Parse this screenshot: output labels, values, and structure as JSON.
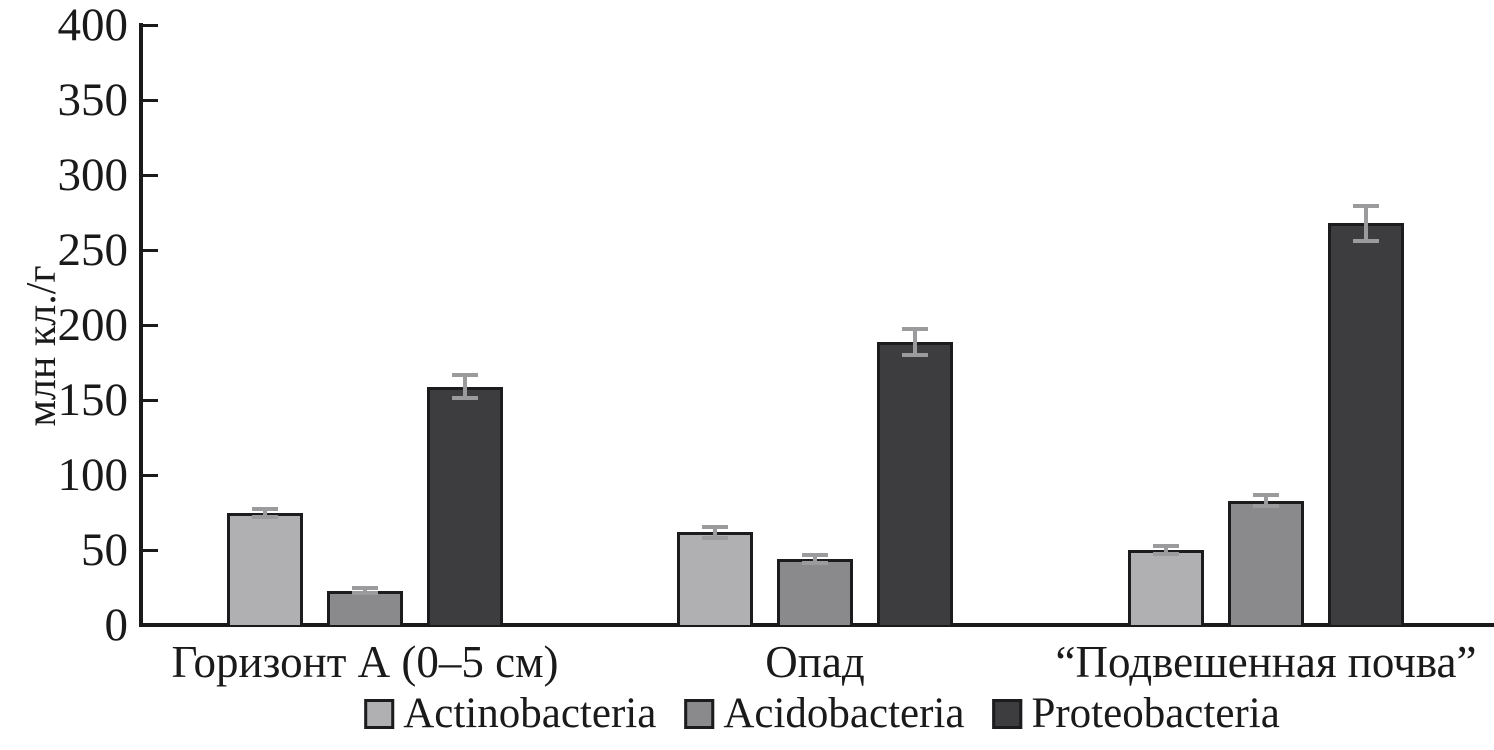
{
  "chart_data": {
    "type": "bar",
    "title": "",
    "xlabel": "",
    "ylabel": "млн кл./г",
    "ylim": [
      0,
      400
    ],
    "ytick_step": 50,
    "grid": false,
    "legend_position": "bottom",
    "categories": [
      "Горизонт А (0–5 см)",
      "Опад",
      "“Подвешенная почва”"
    ],
    "series": [
      {
        "name": "Actinobacteria",
        "color": "#b0b0b2",
        "values": [
          75,
          62,
          50
        ],
        "errors": [
          4,
          5,
          4
        ]
      },
      {
        "name": "Acidobacteria",
        "color": "#8a8a8c",
        "values": [
          23,
          44,
          83
        ],
        "errors": [
          3,
          4,
          5
        ]
      },
      {
        "name": "Proteobacteria",
        "color": "#3d3d3f",
        "values": [
          159,
          189,
          268
        ],
        "errors": [
          9,
          10,
          13
        ]
      }
    ],
    "colors": {
      "axis": "#1a1a1a",
      "text": "#1a1a1a",
      "bar_border": "#1c1c1e",
      "error_bar": "#9b9b9d",
      "background": "#ffffff"
    }
  }
}
